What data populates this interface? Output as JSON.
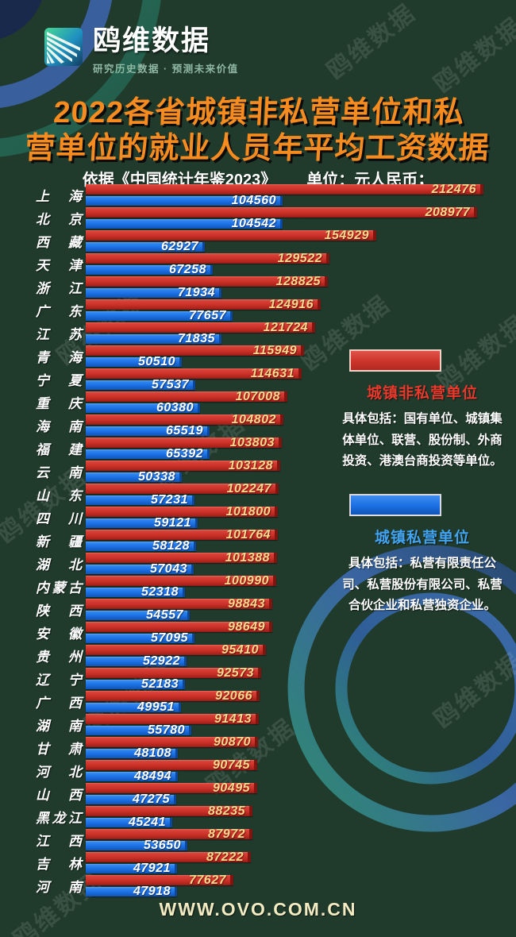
{
  "brand": {
    "name": "鸥维数据",
    "tagline": "研究历史数据 · 预测未来价值"
  },
  "title": {
    "line1": "2022各省城镇非私营单位和私",
    "line2": "营单位的就业人员年平均工资数据"
  },
  "subtitle": {
    "source": "依据《中国统计年鉴2023》",
    "unit": "单位：元人民币；"
  },
  "watermark_text": "鸥维数据",
  "footer": {
    "url": "WWW.OVO.COM.CN"
  },
  "legend": [
    {
      "label": "城镇非私营单位",
      "color": "#cc342a",
      "desc": "具体包括：国有单位、城镇集体单位、联营、股份制、外商投资、港澳台商投资等单位。"
    },
    {
      "label": "城镇私营单位",
      "color": "#1b6fe2",
      "desc": "具体包括：私营有限责任公司、私营股份有限公司、私营合伙企业和私营独资企业。"
    }
  ],
  "chart_data": {
    "type": "bar",
    "orientation": "horizontal",
    "title": "2022各省城镇非私营单位和私营单位的就业人员年平均工资数据",
    "unit": "元人民币",
    "source": "中国统计年鉴2023",
    "xlim": [
      0,
      212476
    ],
    "series": [
      {
        "name": "城镇非私营单位",
        "color": "#cc342a"
      },
      {
        "name": "城镇私营单位",
        "color": "#1b6fe2"
      }
    ],
    "rows": [
      {
        "province": "上海",
        "non_private": 212476,
        "private": 104560
      },
      {
        "province": "北京",
        "non_private": 208977,
        "private": 104542
      },
      {
        "province": "西藏",
        "non_private": 154929,
        "private": 62927
      },
      {
        "province": "天津",
        "non_private": 129522,
        "private": 67258
      },
      {
        "province": "浙江",
        "non_private": 128825,
        "private": 71934
      },
      {
        "province": "广东",
        "non_private": 124916,
        "private": 77657
      },
      {
        "province": "江苏",
        "non_private": 121724,
        "private": 71835
      },
      {
        "province": "青海",
        "non_private": 115949,
        "private": 50510
      },
      {
        "province": "宁夏",
        "non_private": 114631,
        "private": 57537
      },
      {
        "province": "重庆",
        "non_private": 107008,
        "private": 60380
      },
      {
        "province": "海南",
        "non_private": 104802,
        "private": 65519
      },
      {
        "province": "福建",
        "non_private": 103803,
        "private": 65392
      },
      {
        "province": "云南",
        "non_private": 103128,
        "private": 50338
      },
      {
        "province": "山东",
        "non_private": 102247,
        "private": 57231
      },
      {
        "province": "四川",
        "non_private": 101800,
        "private": 59121
      },
      {
        "province": "新疆",
        "non_private": 101764,
        "private": 58128
      },
      {
        "province": "湖北",
        "non_private": 101388,
        "private": 57043
      },
      {
        "province": "内蒙古",
        "non_private": 100990,
        "private": 52318
      },
      {
        "province": "陕西",
        "non_private": 98843,
        "private": 54557
      },
      {
        "province": "安徽",
        "non_private": 98649,
        "private": 57095
      },
      {
        "province": "贵州",
        "non_private": 95410,
        "private": 52922
      },
      {
        "province": "辽宁",
        "non_private": 92573,
        "private": 52183
      },
      {
        "province": "广西",
        "non_private": 92066,
        "private": 49951
      },
      {
        "province": "湖南",
        "non_private": 91413,
        "private": 55780
      },
      {
        "province": "甘肃",
        "non_private": 90870,
        "private": 48108
      },
      {
        "province": "河北",
        "non_private": 90745,
        "private": 48494
      },
      {
        "province": "山西",
        "non_private": 90495,
        "private": 47275
      },
      {
        "province": "黑龙江",
        "non_private": 88235,
        "private": 45241
      },
      {
        "province": "江西",
        "non_private": 87972,
        "private": 53650
      },
      {
        "province": "吉林",
        "non_private": 87222,
        "private": 47921
      },
      {
        "province": "河南",
        "non_private": 77627,
        "private": 47918
      }
    ]
  }
}
